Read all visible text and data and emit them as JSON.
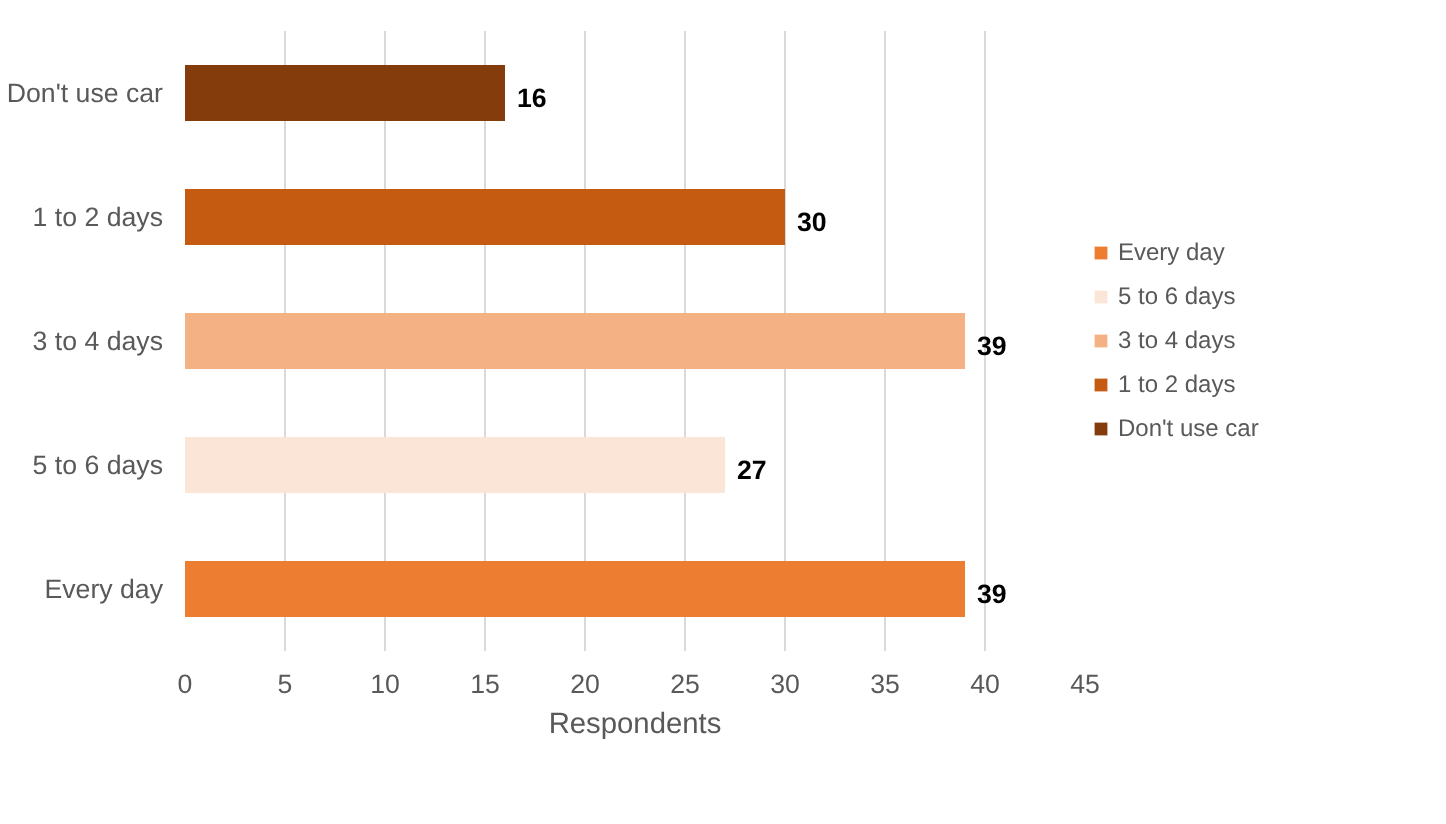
{
  "chart_data": {
    "type": "bar",
    "orientation": "horizontal",
    "xlabel": "Respondents",
    "categories": [
      "Don't use car",
      "1 to 2 days",
      "3 to 4 days",
      "5 to 6 days",
      "Every day"
    ],
    "series": [
      {
        "name": "Every day",
        "color": "#ed7d31",
        "values": [
          null,
          null,
          null,
          null,
          39
        ]
      },
      {
        "name": "5 to 6 days",
        "color": "#fbe5d6",
        "values": [
          null,
          null,
          null,
          27,
          null
        ]
      },
      {
        "name": "3 to 4 days",
        "color": "#f4b183",
        "values": [
          null,
          null,
          39,
          null,
          null
        ]
      },
      {
        "name": "1 to 2 days",
        "color": "#c55a11",
        "values": [
          null,
          30,
          null,
          null,
          null
        ]
      },
      {
        "name": "Don't use car",
        "color": "#843c0c",
        "values": [
          16,
          null,
          null,
          null,
          null
        ]
      }
    ],
    "xlim": [
      0,
      45
    ],
    "xticks": [
      0,
      5,
      10,
      15,
      20,
      25,
      30,
      35,
      40,
      45
    ],
    "grid": "x",
    "legend": "right",
    "data_labels": true
  }
}
